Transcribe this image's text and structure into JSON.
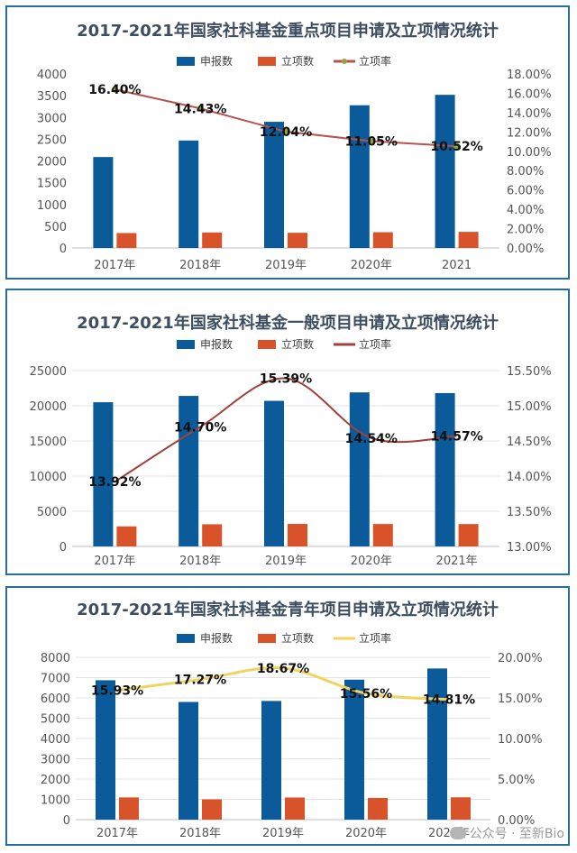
{
  "watermark": "公众号 · 至新Bio",
  "chart_data": [
    {
      "type": "bar",
      "title": "2017-2021年国家社科基金重点项目申请及立项情况统计",
      "categories": [
        "2017年",
        "2018年",
        "2019年",
        "2020年",
        "2021"
      ],
      "series": [
        {
          "name": "申报数",
          "kind": "bar",
          "axis": "left",
          "color": "#0b5a99",
          "values": [
            2090,
            2470,
            2900,
            3280,
            3520
          ]
        },
        {
          "name": "立项数",
          "kind": "bar",
          "axis": "left",
          "color": "#d9532a",
          "values": [
            343,
            356,
            349,
            362,
            370
          ]
        },
        {
          "name": "立项率",
          "kind": "line",
          "axis": "right",
          "color": "#b5534f",
          "marker": true,
          "values": [
            16.4,
            14.43,
            12.04,
            11.05,
            10.52
          ],
          "labels": [
            "16.40%",
            "14.43%",
            "12.04%",
            "11.05%",
            "10.52%"
          ]
        }
      ],
      "yleft": {
        "min": 0,
        "max": 4000,
        "ticks": [
          "0",
          "500",
          "1000",
          "1500",
          "2000",
          "2500",
          "3000",
          "3500",
          "4000"
        ]
      },
      "yright": {
        "min": 0,
        "max": 18,
        "ticks": [
          "0.00%",
          "2.00%",
          "4.00%",
          "6.00%",
          "8.00%",
          "10.00%",
          "12.00%",
          "14.00%",
          "16.00%",
          "18.00%"
        ]
      },
      "legend": "top",
      "grid": false
    },
    {
      "type": "bar",
      "title": "2017-2021年国家社科基金一般项目申请及立项情况统计",
      "categories": [
        "2017年",
        "2018年",
        "2019年",
        "2020年",
        "2021年"
      ],
      "series": [
        {
          "name": "申报数",
          "kind": "bar",
          "axis": "left",
          "color": "#0b5a99",
          "values": [
            20500,
            21400,
            20700,
            21900,
            21800
          ]
        },
        {
          "name": "立项数",
          "kind": "bar",
          "axis": "left",
          "color": "#d9532a",
          "values": [
            2850,
            3150,
            3200,
            3190,
            3180
          ]
        },
        {
          "name": "立项率",
          "kind": "line",
          "axis": "right",
          "color": "#a0413c",
          "marker": false,
          "values": [
            13.92,
            14.7,
            15.39,
            14.54,
            14.57
          ],
          "labels": [
            "13.92%",
            "14.70%",
            "15.39%",
            "14.54%",
            "14.57%"
          ]
        }
      ],
      "yleft": {
        "min": 0,
        "max": 25000,
        "ticks": [
          "0",
          "5000",
          "10000",
          "15000",
          "20000",
          "25000"
        ]
      },
      "yright": {
        "min": 13,
        "max": 15.5,
        "ticks": [
          "13.00%",
          "13.50%",
          "14.00%",
          "14.50%",
          "15.00%",
          "15.50%"
        ]
      },
      "legend": "top",
      "grid": true
    },
    {
      "type": "bar",
      "title": "2017-2021年国家社科基金青年项目申请及立项情况统计",
      "categories": [
        "2017年",
        "2018年",
        "2019年",
        "2020年",
        "2021年"
      ],
      "series": [
        {
          "name": "申报数",
          "kind": "bar",
          "axis": "left",
          "color": "#0b5a99",
          "values": [
            6870,
            5800,
            5850,
            6900,
            7450
          ]
        },
        {
          "name": "立项数",
          "kind": "bar",
          "axis": "left",
          "color": "#d9532a",
          "values": [
            1095,
            1000,
            1090,
            1070,
            1100
          ]
        },
        {
          "name": "立项率",
          "kind": "line",
          "axis": "right",
          "color": "#f2d35e",
          "marker": false,
          "values": [
            15.93,
            17.27,
            18.67,
            15.56,
            14.81
          ],
          "labels": [
            "15.93%",
            "17.27%",
            "18.67%",
            "15.56%",
            "14.81%"
          ]
        }
      ],
      "yleft": {
        "min": 0,
        "max": 8000,
        "ticks": [
          "0",
          "1000",
          "2000",
          "3000",
          "4000",
          "5000",
          "6000",
          "7000",
          "8000"
        ]
      },
      "yright": {
        "min": 0,
        "max": 20,
        "ticks": [
          "0.00%",
          "5.00%",
          "10.00%",
          "15.00%",
          "20.00%"
        ]
      },
      "legend": "top",
      "grid": true
    }
  ]
}
